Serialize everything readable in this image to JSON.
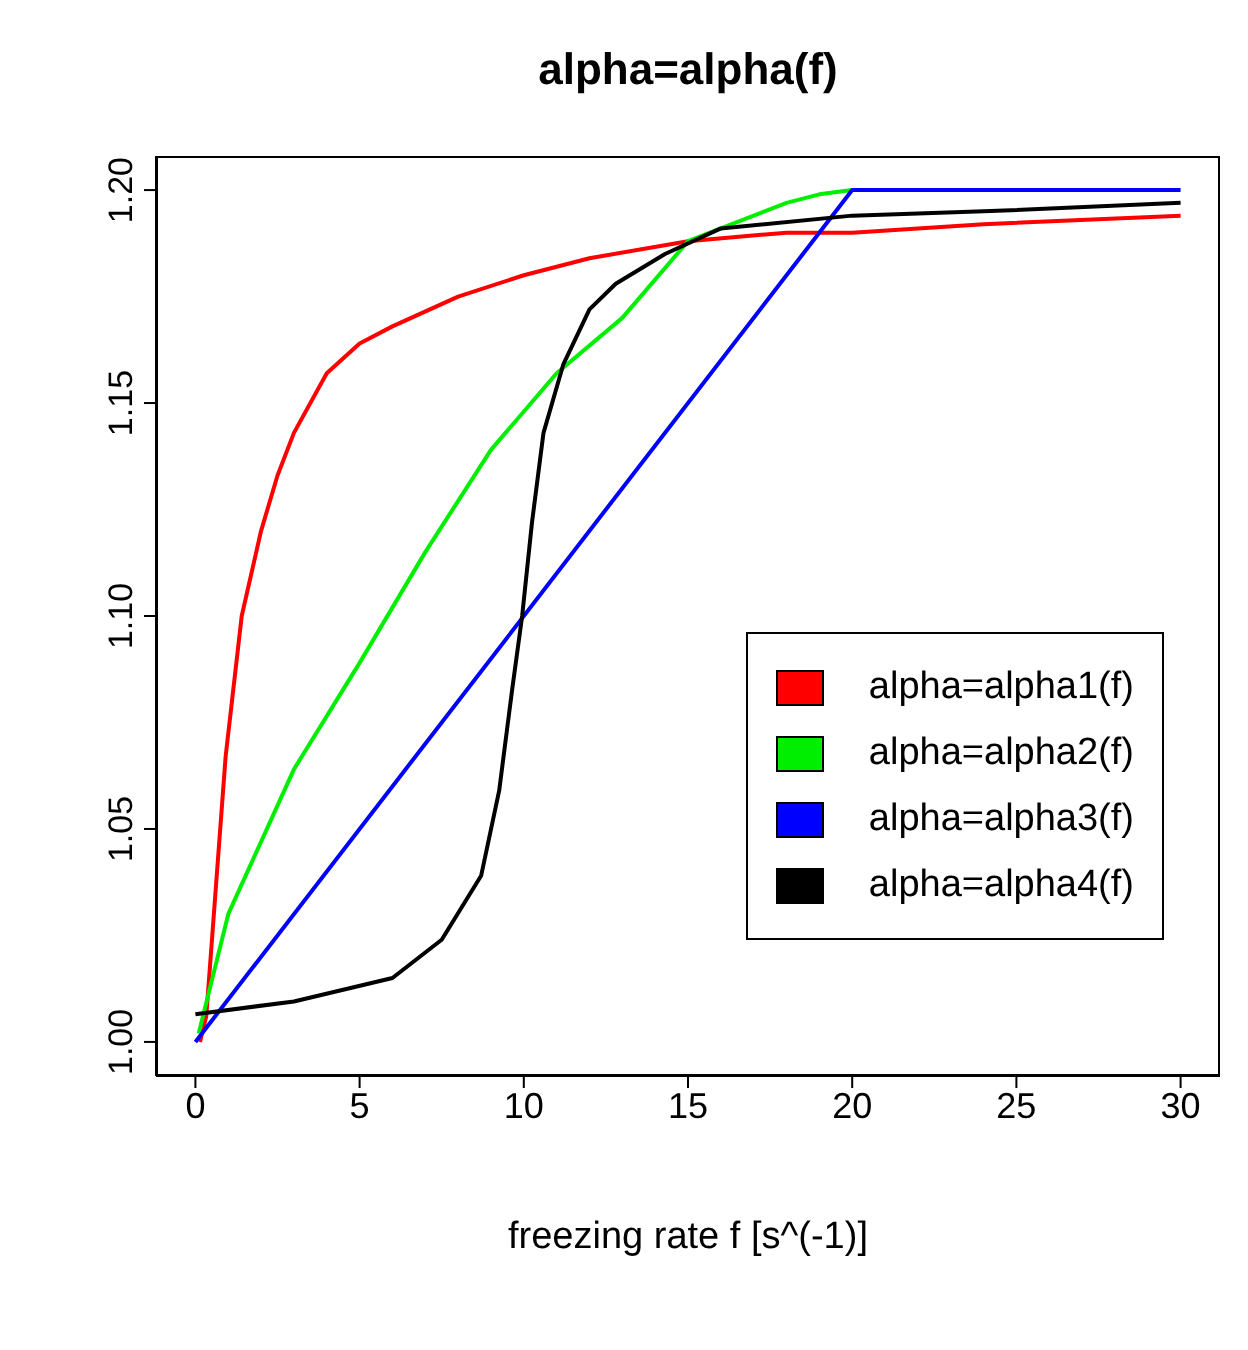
{
  "chart_data": {
    "type": "line",
    "title": "alpha=alpha(f)",
    "xlabel": "freezing rate f [s^(-1)]",
    "xlim": [
      -1.2,
      31.2
    ],
    "xticks": [
      0,
      5,
      10,
      15,
      20,
      25,
      30
    ],
    "ylim": [
      0.992,
      1.208
    ],
    "yticks": [
      {
        "value": 1.0,
        "label": "1.00"
      },
      {
        "value": 1.05,
        "label": "1.05"
      },
      {
        "value": 1.1,
        "label": "1.10"
      },
      {
        "value": 1.15,
        "label": "1.15"
      },
      {
        "value": 1.2,
        "label": "1.20"
      }
    ],
    "grid": false,
    "legend": "bottom right",
    "series": [
      {
        "name": "alpha=alpha1(f)",
        "color": "#ff0000",
        "x": [
          0.14,
          0.33,
          0.92,
          1.41,
          2.0,
          2.5,
          3.0,
          4.0,
          5.0,
          6.0,
          8.0,
          10.0,
          12.0,
          15.0,
          18.0,
          20.0,
          24.0,
          30.0
        ],
        "values": [
          1.0,
          1.006,
          1.067,
          1.1,
          1.12,
          1.133,
          1.143,
          1.157,
          1.164,
          1.168,
          1.175,
          1.18,
          1.184,
          1.188,
          1.19,
          1.19,
          1.192,
          1.194
        ]
      },
      {
        "name": "alpha=alpha2(f)",
        "color": "#00ee00",
        "x": [
          0.1,
          1.0,
          3.0,
          5.0,
          7.0,
          9.0,
          11.0,
          13.0,
          15.0,
          16.0,
          18.0,
          19.0,
          20.0
        ],
        "values": [
          1.002,
          1.03,
          1.064,
          1.089,
          1.115,
          1.139,
          1.157,
          1.17,
          1.188,
          1.191,
          1.197,
          1.199,
          1.2
        ]
      },
      {
        "name": "alpha=alpha3(f)",
        "color": "#0000ff",
        "x": [
          0,
          20,
          30
        ],
        "values": [
          1.0,
          1.2,
          1.2
        ]
      },
      {
        "name": "alpha=alpha4(f)",
        "color": "#000000",
        "x": [
          0,
          3.0,
          6.0,
          7.5,
          8.7,
          9.25,
          9.65,
          9.95,
          10.25,
          10.6,
          11.2,
          12.0,
          12.8,
          14.3,
          16.0,
          20.0,
          24.0,
          30.0
        ],
        "values": [
          1.0065,
          1.0095,
          1.015,
          1.024,
          1.039,
          1.059,
          1.083,
          1.1,
          1.122,
          1.143,
          1.159,
          1.172,
          1.178,
          1.185,
          1.191,
          1.194,
          1.195,
          1.197
        ]
      }
    ]
  }
}
